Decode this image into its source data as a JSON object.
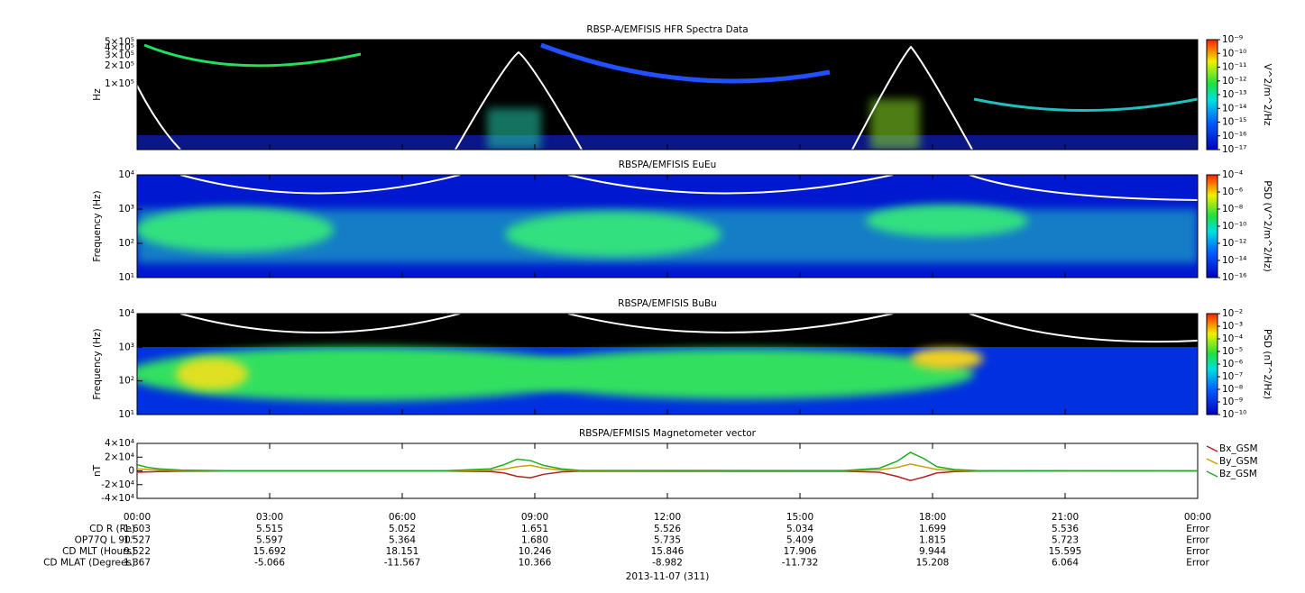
{
  "chart_data": [
    {
      "type": "spectrogram",
      "title": "RBSP-A/EMFISIS  HFR Spectra Data",
      "ylabel": "Hz",
      "log_y": true,
      "ylim": [
        8000,
        550000
      ],
      "yticks": [
        {
          "value": 100000,
          "label": "1×10⁵"
        },
        {
          "value": 200000,
          "label": "2×10⁵"
        },
        {
          "value": 300000,
          "label": "3×10⁵"
        },
        {
          "value": 400000,
          "label": "4×10⁵"
        },
        {
          "value": 500000,
          "label": "5×10⁵"
        }
      ],
      "colorbar": {
        "label": "V^2/m^2/Hz",
        "lim": [
          1e-17,
          1e-09
        ],
        "ticks": [
          {
            "value": 1e-09,
            "label": "10⁻⁹"
          },
          {
            "value": 1e-10,
            "label": "10⁻¹⁰"
          },
          {
            "value": 1e-11,
            "label": "10⁻¹¹"
          },
          {
            "value": 1e-12,
            "label": "10⁻¹²"
          },
          {
            "value": 1e-13,
            "label": "10⁻¹³"
          },
          {
            "value": 1e-14,
            "label": "10⁻¹⁴"
          },
          {
            "value": 1e-15,
            "label": "10⁻¹⁵"
          },
          {
            "value": 1e-16,
            "label": "10⁻¹⁶"
          },
          {
            "value": 1e-17,
            "label": "10⁻¹⁷"
          }
        ]
      }
    },
    {
      "type": "spectrogram",
      "title": "RBSPA/EMFISIS  EuEu",
      "ylabel": "Frequency (Hz)",
      "log_y": true,
      "ylim": [
        10,
        10000
      ],
      "yticks": [
        {
          "value": 10,
          "label": "10¹"
        },
        {
          "value": 100,
          "label": "10²"
        },
        {
          "value": 1000,
          "label": "10³"
        },
        {
          "value": 10000,
          "label": "10⁴"
        }
      ],
      "colorbar": {
        "label": "PSD (V^2/m^2/Hz)",
        "lim": [
          1e-16,
          0.0001
        ],
        "ticks": [
          {
            "value": 0.0001,
            "label": "10⁻⁴"
          },
          {
            "value": 1e-06,
            "label": "10⁻⁶"
          },
          {
            "value": 1e-08,
            "label": "10⁻⁸"
          },
          {
            "value": 1e-10,
            "label": "10⁻¹⁰"
          },
          {
            "value": 1e-12,
            "label": "10⁻¹²"
          },
          {
            "value": 1e-14,
            "label": "10⁻¹⁴"
          },
          {
            "value": 1e-16,
            "label": "10⁻¹⁶"
          }
        ]
      }
    },
    {
      "type": "spectrogram",
      "title": "RBSPA/EMFISIS  BuBu",
      "ylabel": "Frequency (Hz)",
      "log_y": true,
      "ylim": [
        10,
        10000
      ],
      "yticks": [
        {
          "value": 10,
          "label": "10¹"
        },
        {
          "value": 100,
          "label": "10²"
        },
        {
          "value": 1000,
          "label": "10³"
        },
        {
          "value": 10000,
          "label": "10⁴"
        }
      ],
      "colorbar": {
        "label": "PSD (nT^2/Hz)",
        "lim": [
          1e-10,
          0.01
        ],
        "ticks": [
          {
            "value": 0.01,
            "label": "10⁻²"
          },
          {
            "value": 0.001,
            "label": "10⁻³"
          },
          {
            "value": 0.0001,
            "label": "10⁻⁴"
          },
          {
            "value": 1e-05,
            "label": "10⁻⁵"
          },
          {
            "value": 1e-06,
            "label": "10⁻⁶"
          },
          {
            "value": 1e-07,
            "label": "10⁻⁷"
          },
          {
            "value": 1e-08,
            "label": "10⁻⁸"
          },
          {
            "value": 1e-09,
            "label": "10⁻⁹"
          },
          {
            "value": 1e-10,
            "label": "10⁻¹⁰"
          }
        ]
      }
    },
    {
      "type": "line",
      "title": "RBSPA/EFMISIS  Magnetometer vector",
      "ylabel": "nT",
      "ylim": [
        -40000,
        40000
      ],
      "yticks": [
        {
          "value": -40000,
          "label": "-4×10⁴"
        },
        {
          "value": -20000,
          "label": "-2×10⁴"
        },
        {
          "value": 0,
          "label": "0"
        },
        {
          "value": 20000,
          "label": "2×10⁴"
        },
        {
          "value": 40000,
          "label": "4×10⁴"
        }
      ],
      "x": [
        0,
        0.25,
        0.5,
        1,
        2,
        7,
        8,
        8.3,
        8.6,
        8.9,
        9.2,
        9.6,
        10,
        16,
        16.8,
        17.2,
        17.5,
        17.8,
        18.1,
        18.5,
        19,
        24
      ],
      "series": [
        {
          "name": "Bx_GSM",
          "color": "#b22222",
          "values": [
            -2000,
            -1500,
            -1000,
            -500,
            -200,
            -200,
            -1000,
            -3000,
            -8000,
            -10000,
            -5000,
            -1500,
            -500,
            -500,
            -2000,
            -8000,
            -14000,
            -9000,
            -3000,
            -1000,
            -300,
            0
          ]
        },
        {
          "name": "By_GSM",
          "color": "#c8a000",
          "values": [
            3000,
            2000,
            1200,
            500,
            200,
            100,
            800,
            2500,
            6000,
            8000,
            4000,
            1200,
            400,
            300,
            1500,
            5000,
            10000,
            6000,
            2000,
            600,
            200,
            0
          ]
        },
        {
          "name": "Bz_GSM",
          "color": "#22aa22",
          "values": [
            9000,
            5000,
            3000,
            1200,
            400,
            300,
            3000,
            9000,
            17000,
            15000,
            8000,
            3000,
            800,
            500,
            4000,
            14000,
            27000,
            18000,
            6000,
            2000,
            500,
            0
          ]
        }
      ]
    }
  ],
  "x_axis": {
    "xlim": [
      0,
      24
    ],
    "xticks": [
      {
        "value": 0,
        "label": "00:00"
      },
      {
        "value": 3,
        "label": "03:00"
      },
      {
        "value": 6,
        "label": "06:00"
      },
      {
        "value": 9,
        "label": "09:00"
      },
      {
        "value": 12,
        "label": "12:00"
      },
      {
        "value": 15,
        "label": "15:00"
      },
      {
        "value": 18,
        "label": "18:00"
      },
      {
        "value": 21,
        "label": "21:00"
      },
      {
        "value": 24,
        "label": "00:00"
      }
    ],
    "date": "2013-11-07 (311)"
  },
  "ephemeris": [
    {
      "label": "CD R (Re)",
      "values": [
        "1.603",
        "5.515",
        "5.052",
        "1.651",
        "5.526",
        "5.034",
        "1.699",
        "5.536",
        "Error"
      ]
    },
    {
      "label": "OP77Q L 90°",
      "values": [
        "1.527",
        "5.597",
        "5.364",
        "1.680",
        "5.735",
        "5.409",
        "1.815",
        "5.723",
        "Error"
      ]
    },
    {
      "label": "CD MLT (Hours)",
      "values": [
        "9.522",
        "15.692",
        "18.151",
        "10.246",
        "15.846",
        "17.906",
        "9.944",
        "15.595",
        "Error"
      ]
    },
    {
      "label": "CD MLAT (Degrees)",
      "values": [
        "1.367",
        "-5.066",
        "-11.567",
        "10.366",
        "-8.982",
        "-11.732",
        "15.208",
        "6.064",
        "Error"
      ]
    }
  ]
}
